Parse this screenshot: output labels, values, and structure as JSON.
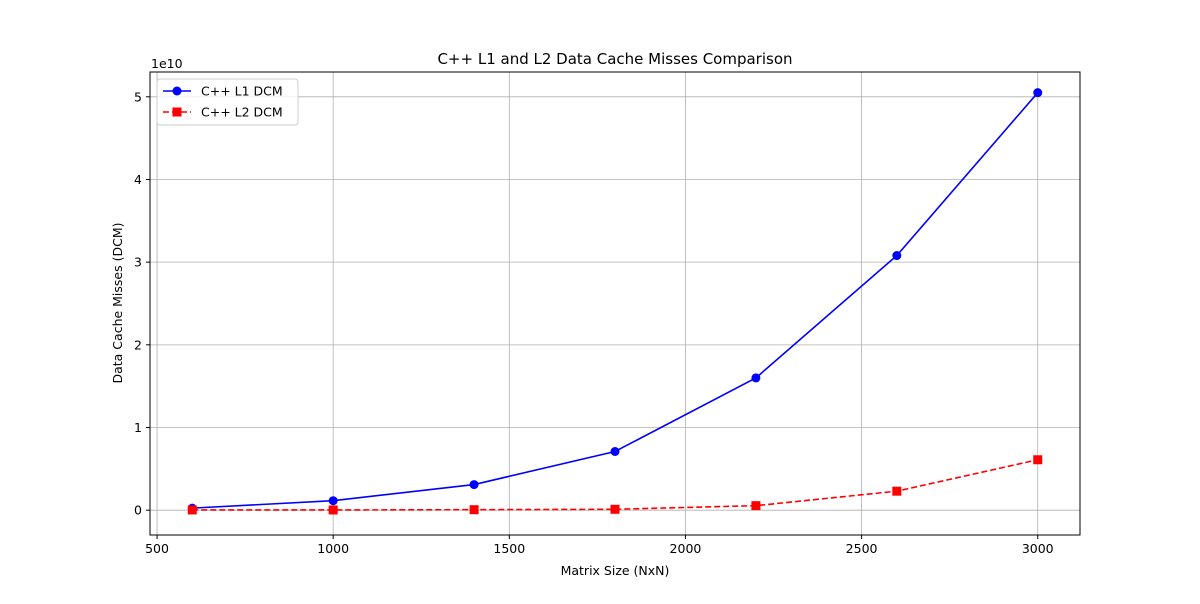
{
  "chart_data": {
    "type": "line",
    "title": "C++ L1 and L2 Data Cache Misses Comparison",
    "xlabel": "Matrix Size (NxN)",
    "ylabel": "Data Cache Misses (DCM)",
    "y_scale_label": "1e10",
    "y_scale_factor": 10000000000,
    "xlim": [
      480,
      3120
    ],
    "ylim": [
      -3000000000,
      53000000000
    ],
    "x_ticks": [
      500,
      1000,
      1500,
      2000,
      2500,
      3000
    ],
    "x_tick_labels": [
      "500",
      "1000",
      "1500",
      "2000",
      "2500",
      "3000"
    ],
    "y_ticks": [
      0,
      10000000000,
      20000000000,
      30000000000,
      40000000000,
      50000000000
    ],
    "y_tick_labels": [
      "0",
      "1",
      "2",
      "3",
      "4",
      "5"
    ],
    "grid": true,
    "legend_position": "top-left",
    "x": [
      600,
      1000,
      1400,
      1800,
      2200,
      2600,
      3000
    ],
    "series": [
      {
        "name": "C++ L1 DCM",
        "values": [
          250000000,
          1150000000,
          3100000000,
          7100000000,
          16000000000,
          30800000000,
          50500000000
        ],
        "color": "#0000ff",
        "line_style": "solid",
        "marker": "circle"
      },
      {
        "name": "C++ L2 DCM",
        "values": [
          30000000,
          30000000,
          60000000,
          110000000,
          550000000,
          2300000000,
          6100000000
        ],
        "color": "#ff0000",
        "line_style": "dashed",
        "marker": "square"
      }
    ]
  }
}
